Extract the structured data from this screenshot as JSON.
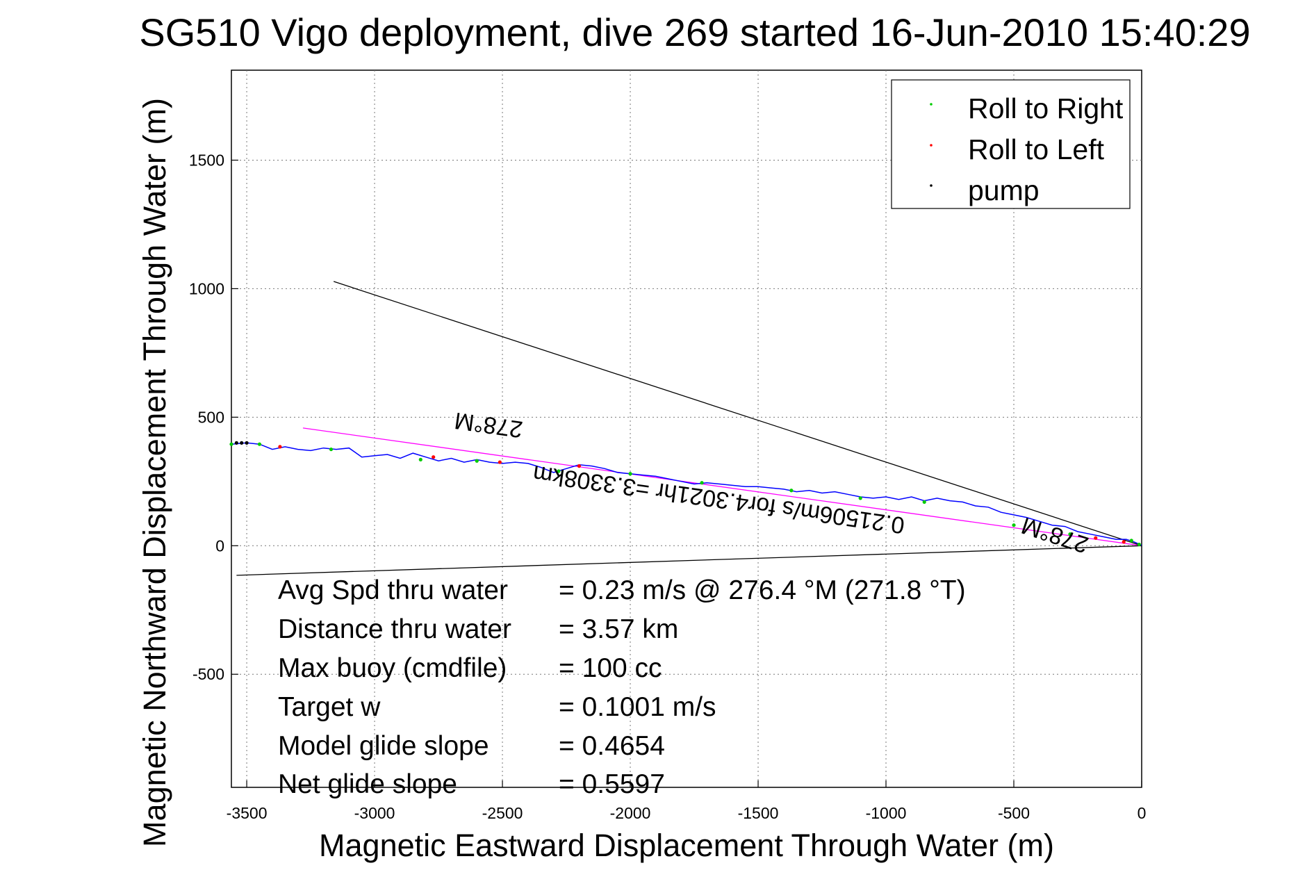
{
  "chart_data": {
    "type": "line",
    "title": "SG510 Vigo deployment, dive 269 started 16-Jun-2010 15:40:29",
    "xlabel": "Magnetic Eastward Displacement Through Water (m)",
    "ylabel": "Magnetic Northward Displacement Through Water (m)",
    "xlim": [
      -3560,
      0
    ],
    "ylim": [
      -940,
      1850
    ],
    "xticks": [
      -3500,
      -3000,
      -2500,
      -2000,
      -1500,
      -1000,
      -500,
      0
    ],
    "yticks": [
      -500,
      0,
      500,
      1000,
      1500
    ],
    "grid": true,
    "legend_position": "top-right",
    "legend": [
      {
        "label": "Roll to Right",
        "color": "#00cc00"
      },
      {
        "label": "Roll to Left",
        "color": "#ff0000"
      },
      {
        "label": "pump",
        "color": "#000000"
      }
    ],
    "track": {
      "color": "#0000ff",
      "x": [
        0,
        -30,
        -60,
        -100,
        -150,
        -200,
        -250,
        -300,
        -350,
        -400,
        -450,
        -500,
        -550,
        -600,
        -650,
        -700,
        -750,
        -800,
        -850,
        -900,
        -950,
        -1000,
        -1050,
        -1100,
        -1150,
        -1200,
        -1250,
        -1300,
        -1350,
        -1400,
        -1450,
        -1500,
        -1550,
        -1600,
        -1650,
        -1700,
        -1750,
        -1800,
        -1850,
        -1900,
        -1950,
        -2000,
        -2050,
        -2100,
        -2150,
        -2200,
        -2250,
        -2300,
        -2350,
        -2400,
        -2450,
        -2500,
        -2550,
        -2600,
        -2650,
        -2700,
        -2750,
        -2800,
        -2850,
        -2900,
        -2950,
        -3000,
        -3050,
        -3100,
        -3150,
        -3200,
        -3250,
        -3300,
        -3350,
        -3400,
        -3450,
        -3500,
        -3560
      ],
      "y": [
        2,
        15,
        25,
        25,
        35,
        45,
        55,
        75,
        80,
        95,
        110,
        120,
        130,
        150,
        155,
        170,
        175,
        185,
        175,
        190,
        180,
        190,
        185,
        190,
        200,
        210,
        205,
        215,
        210,
        220,
        225,
        230,
        230,
        235,
        240,
        245,
        240,
        250,
        260,
        270,
        275,
        280,
        285,
        300,
        310,
        315,
        300,
        285,
        305,
        320,
        325,
        320,
        325,
        335,
        325,
        340,
        330,
        345,
        360,
        340,
        355,
        350,
        345,
        380,
        375,
        380,
        370,
        375,
        385,
        375,
        395,
        400,
        395
      ]
    },
    "roll_right_points": {
      "x": [
        -10,
        -40,
        -280,
        -500,
        -850,
        -1100,
        -1370,
        -1720,
        -2000,
        -2280,
        -2600,
        -2820,
        -3170,
        -3450,
        -3560
      ],
      "y": [
        5,
        20,
        45,
        80,
        170,
        185,
        215,
        245,
        280,
        290,
        330,
        335,
        375,
        395,
        395
      ]
    },
    "roll_left_points": {
      "x": [
        -70,
        -180,
        -2200,
        -2510,
        -2770,
        -3370
      ],
      "y": [
        15,
        30,
        310,
        325,
        345,
        385
      ]
    },
    "pump_points": {
      "x": [
        -3540,
        -3520,
        -3500
      ],
      "y": [
        400,
        400,
        400
      ]
    },
    "reference_lines": [
      {
        "name": "magenta",
        "color": "#ff00ff",
        "x": [
          0,
          -3280
        ],
        "y": [
          0,
          458
        ]
      },
      {
        "name": "black-upper",
        "color": "#000000",
        "x": [
          0,
          -3160
        ],
        "y": [
          0,
          1028
        ]
      },
      {
        "name": "black-lower",
        "color": "#000000",
        "x": [
          0,
          -3540
        ],
        "y": [
          0,
          -115
        ]
      }
    ],
    "annotations": [
      {
        "text": "278°M",
        "x": -2550,
        "y": 500,
        "rotate": 188
      },
      {
        "text": "0.21506m/s for4.3021hr =3.3308km",
        "x": -1650,
        "y": 210,
        "rotate": 188
      },
      {
        "text": "278°M",
        "x": -330,
        "y": 70,
        "rotate": 198
      }
    ],
    "stats": [
      {
        "label": "Avg Spd thru water",
        "value": "=  0.23 m/s @ 276.4 °M (271.8 °T)"
      },
      {
        "label": "Distance thru water",
        "value": "=  3.57 km"
      },
      {
        "label": "Max buoy (cmdfile)",
        "value": "= 100 cc"
      },
      {
        "label": "Target w",
        "value": "= 0.1001 m/s"
      },
      {
        "label": "Model glide slope",
        "value": "= 0.4654"
      },
      {
        "label": "Net glide slope",
        "value": "= 0.5597"
      }
    ]
  }
}
